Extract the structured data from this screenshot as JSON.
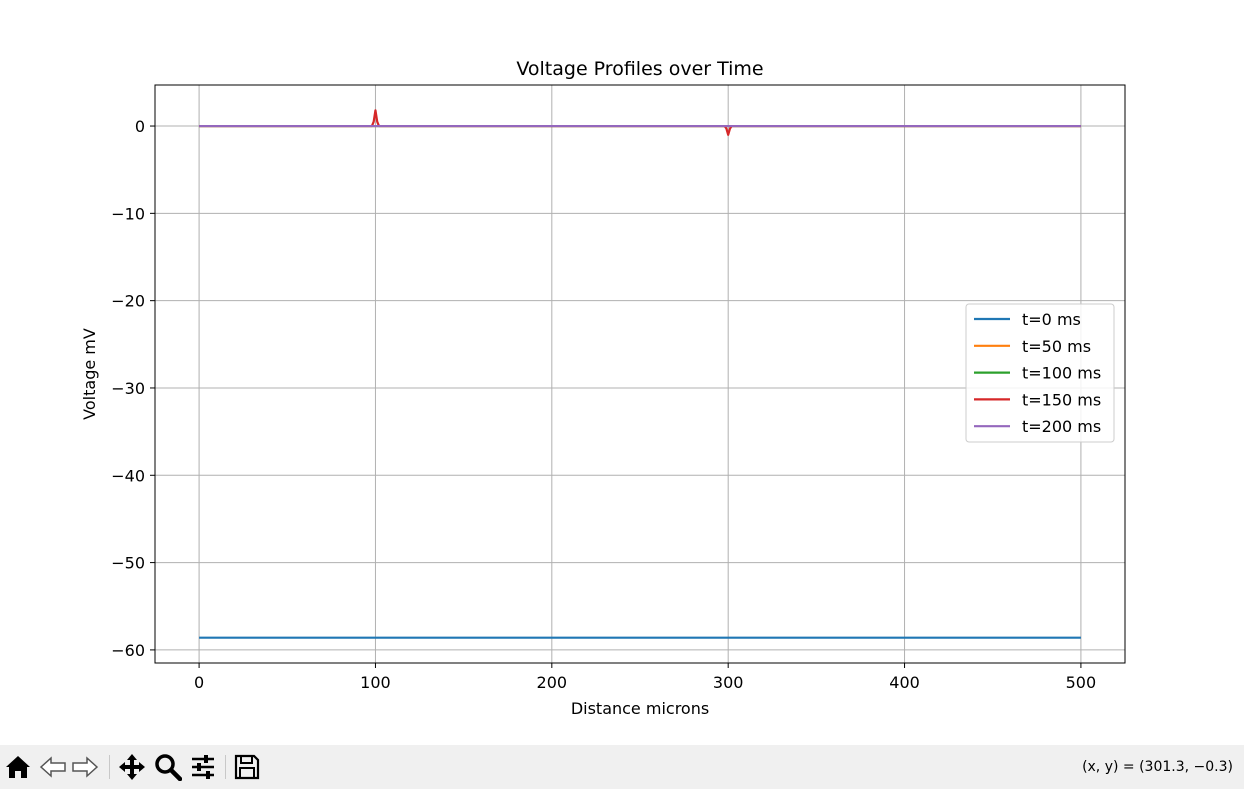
{
  "chart_data": {
    "type": "line",
    "title": "Voltage Profiles over Time",
    "xlabel": "Distance microns",
    "ylabel": "Voltage mV",
    "xlim": [
      -25,
      525
    ],
    "ylim": [
      -61.5,
      4.7
    ],
    "xticks": [
      0,
      100,
      200,
      300,
      400,
      500
    ],
    "yticks": [
      0,
      -10,
      -20,
      -30,
      -40,
      -50,
      -60
    ],
    "xtick_labels": [
      "0",
      "100",
      "200",
      "300",
      "400",
      "500"
    ],
    "ytick_labels": [
      "0",
      "−10",
      "−20",
      "−30",
      "−40",
      "−50",
      "−60"
    ],
    "grid": true,
    "legend_position": "center-right",
    "series": [
      {
        "name": "t=0 ms",
        "color": "#1f77b4",
        "x": [
          0,
          500
        ],
        "y": [
          -58.6,
          -58.6
        ]
      },
      {
        "name": "t=50 ms",
        "color": "#ff7f0e",
        "x": [
          0,
          500
        ],
        "y": [
          0,
          0
        ]
      },
      {
        "name": "t=100 ms",
        "color": "#2ca02c",
        "x": [
          0,
          500
        ],
        "y": [
          0,
          0
        ]
      },
      {
        "name": "t=150 ms",
        "color": "#d62728",
        "x": [
          0,
          98,
          99,
          100,
          101,
          102,
          298,
          299,
          300,
          301,
          302,
          500
        ],
        "y": [
          0,
          0,
          0.5,
          1.8,
          0.5,
          0,
          0,
          -0.3,
          -1.0,
          -0.3,
          0,
          0
        ]
      },
      {
        "name": "t=200 ms",
        "color": "#9467bd",
        "x": [
          0,
          500
        ],
        "y": [
          0,
          0
        ]
      }
    ]
  },
  "toolbar": {
    "buttons": [
      "home-icon",
      "back-icon",
      "forward-icon",
      "pan-icon",
      "zoom-icon",
      "configure-icon",
      "save-icon"
    ],
    "coords": "(x, y) = (301.3, −0.3)"
  }
}
